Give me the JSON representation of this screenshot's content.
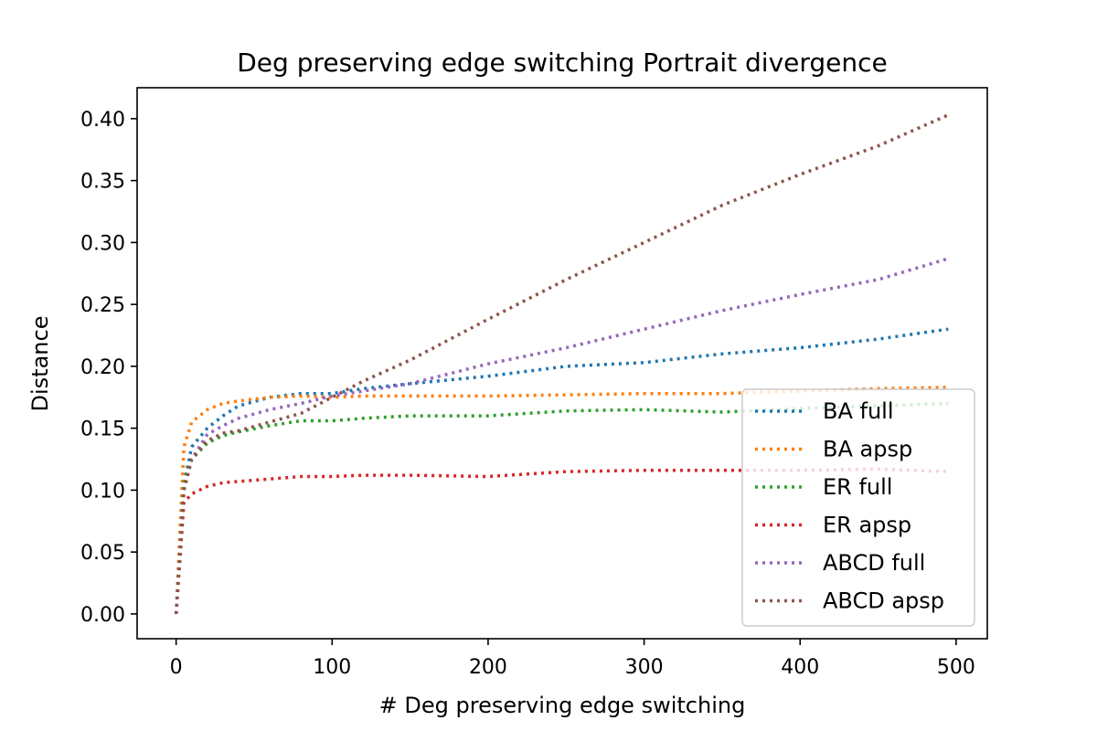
{
  "chart_data": {
    "type": "line",
    "title": "Deg preserving edge switching Portrait divergence",
    "xlabel": "# Deg preserving edge switching",
    "ylabel": "Distance",
    "xlim": [
      -25,
      520
    ],
    "ylim": [
      -0.02,
      0.425
    ],
    "xticks": [
      0,
      100,
      200,
      300,
      400,
      500
    ],
    "yticks": [
      0.0,
      0.05,
      0.1,
      0.15,
      0.2,
      0.25,
      0.3,
      0.35,
      0.4
    ],
    "xtick_labels": [
      "0",
      "100",
      "200",
      "300",
      "400",
      "500"
    ],
    "ytick_labels": [
      "0.00",
      "0.05",
      "0.10",
      "0.15",
      "0.20",
      "0.25",
      "0.30",
      "0.35",
      "0.40"
    ],
    "grid": false,
    "line_style": "dotted",
    "legend_position": "lower-right",
    "series": [
      {
        "name": "BA full",
        "color": "#1f77b4",
        "x": [
          0,
          5,
          10,
          20,
          30,
          40,
          60,
          80,
          100,
          120,
          150,
          200,
          250,
          300,
          350,
          400,
          450,
          495
        ],
        "y": [
          0.0,
          0.105,
          0.135,
          0.15,
          0.16,
          0.168,
          0.175,
          0.178,
          0.178,
          0.182,
          0.186,
          0.192,
          0.2,
          0.203,
          0.21,
          0.215,
          0.222,
          0.23
        ]
      },
      {
        "name": "BA apsp",
        "color": "#ff7f0e",
        "x": [
          0,
          5,
          10,
          20,
          30,
          40,
          60,
          80,
          100,
          120,
          150,
          200,
          250,
          300,
          350,
          400,
          450,
          495
        ],
        "y": [
          0.0,
          0.135,
          0.155,
          0.165,
          0.17,
          0.172,
          0.175,
          0.176,
          0.175,
          0.176,
          0.176,
          0.176,
          0.177,
          0.178,
          0.178,
          0.18,
          0.182,
          0.183
        ]
      },
      {
        "name": "ER full",
        "color": "#2ca02c",
        "x": [
          0,
          5,
          10,
          20,
          30,
          40,
          60,
          80,
          100,
          120,
          150,
          200,
          250,
          300,
          350,
          400,
          450,
          495
        ],
        "y": [
          0.0,
          0.105,
          0.125,
          0.138,
          0.144,
          0.147,
          0.152,
          0.156,
          0.156,
          0.158,
          0.16,
          0.16,
          0.164,
          0.165,
          0.163,
          0.166,
          0.168,
          0.17
        ]
      },
      {
        "name": "ER apsp",
        "color": "#d62728",
        "x": [
          0,
          5,
          10,
          20,
          30,
          40,
          60,
          80,
          100,
          120,
          150,
          200,
          250,
          300,
          350,
          400,
          450,
          495
        ],
        "y": [
          0.0,
          0.09,
          0.097,
          0.103,
          0.106,
          0.107,
          0.109,
          0.111,
          0.111,
          0.112,
          0.112,
          0.111,
          0.115,
          0.116,
          0.116,
          0.116,
          0.117,
          0.115
        ]
      },
      {
        "name": "ABCD full",
        "color": "#9467bd",
        "x": [
          0,
          5,
          10,
          20,
          30,
          40,
          60,
          80,
          100,
          120,
          150,
          200,
          250,
          300,
          350,
          400,
          450,
          495
        ],
        "y": [
          0.0,
          0.1,
          0.125,
          0.145,
          0.152,
          0.158,
          0.165,
          0.17,
          0.176,
          0.18,
          0.186,
          0.202,
          0.215,
          0.23,
          0.245,
          0.258,
          0.27,
          0.287
        ]
      },
      {
        "name": "ABCD apsp",
        "color": "#8c564b",
        "x": [
          0,
          5,
          10,
          20,
          30,
          40,
          60,
          80,
          100,
          120,
          150,
          200,
          250,
          300,
          350,
          400,
          450,
          495
        ],
        "y": [
          0.0,
          0.1,
          0.125,
          0.14,
          0.146,
          0.148,
          0.155,
          0.162,
          0.175,
          0.188,
          0.205,
          0.238,
          0.27,
          0.3,
          0.33,
          0.355,
          0.378,
          0.403
        ]
      }
    ]
  }
}
